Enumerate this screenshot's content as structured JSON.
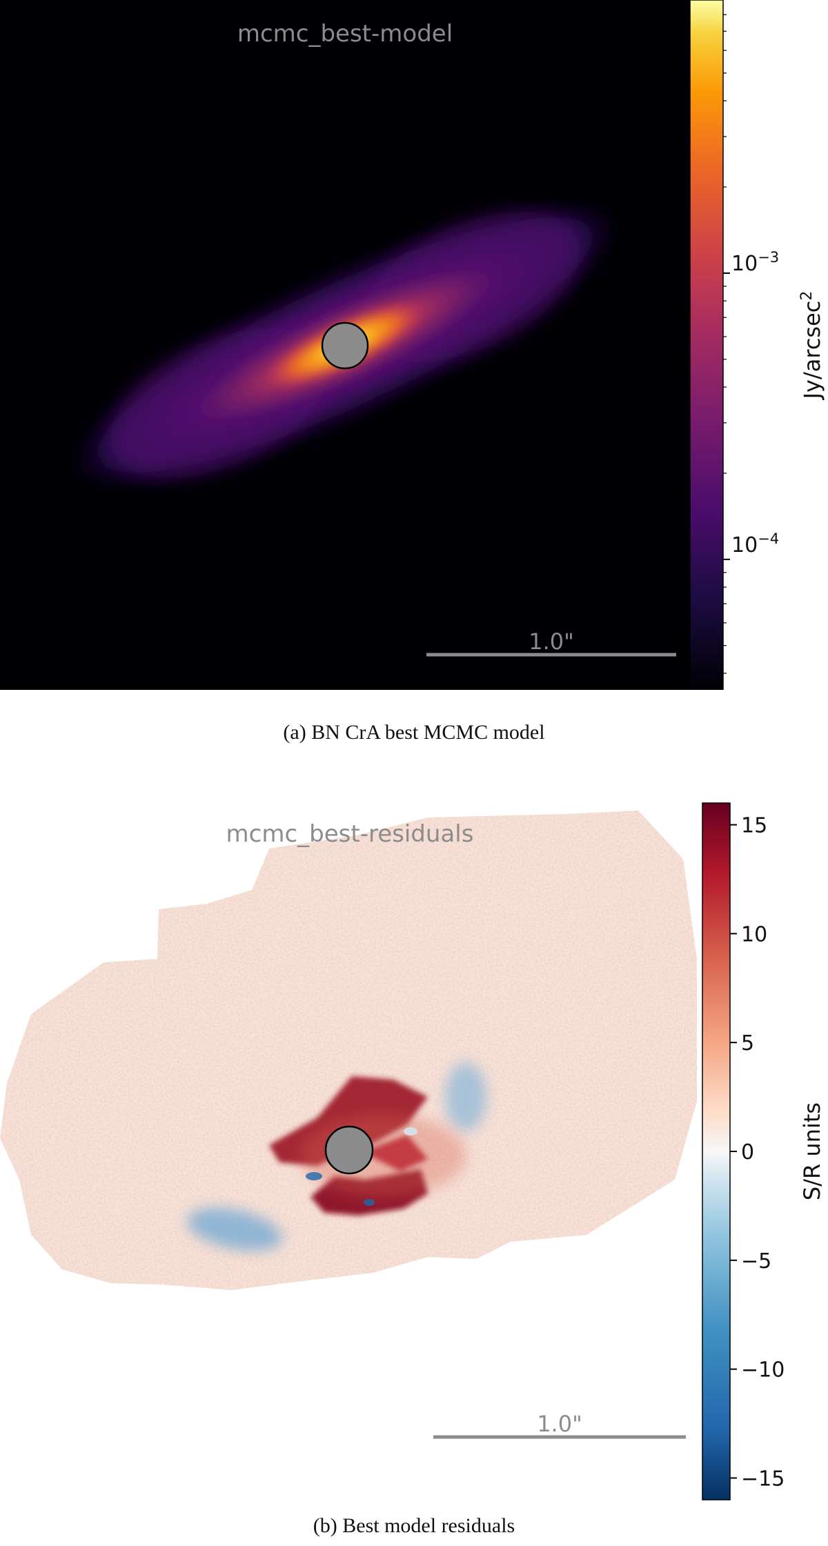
{
  "figure_a": {
    "title": "mcmc_best-model",
    "colorbar": {
      "label_base": "Jy/arcsec",
      "label_sup": "2",
      "ticks": [
        {
          "base": "10",
          "exp": "−3",
          "value": 0.001
        },
        {
          "base": "10",
          "exp": "−4",
          "value": 0.0001
        }
      ],
      "range": [
        3.5e-05,
        0.009
      ],
      "scale": "log",
      "colormap": "inferno"
    },
    "scale_bar_label": "1.0\"",
    "caption": "(a) BN CrA best MCMC model"
  },
  "figure_b": {
    "title": "mcmc_best-residuals",
    "colorbar": {
      "label": "S/R units",
      "ticks": [
        {
          "label": "15",
          "value": 15
        },
        {
          "label": "10",
          "value": 10
        },
        {
          "label": "5",
          "value": 5
        },
        {
          "label": "0",
          "value": 0
        },
        {
          "label": "−5",
          "value": -5
        },
        {
          "label": "−10",
          "value": -10
        },
        {
          "label": "−15",
          "value": -15
        }
      ],
      "range": [
        -16,
        16
      ],
      "colormap": "RdBu_r"
    },
    "scale_bar_label": "1.0\"",
    "caption": "(b) Best model residuals"
  },
  "colors": {
    "background_a": "#000004",
    "mask": "#8c8c8c",
    "scale_bar": "#8c8c8c"
  }
}
